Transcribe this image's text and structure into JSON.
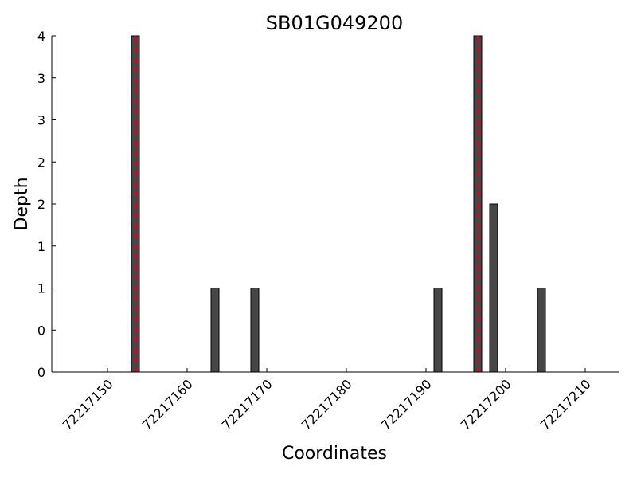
{
  "chart_data": {
    "type": "bar",
    "title": "SB01G049200",
    "x_label": "Coordinates",
    "y_label": "Depth",
    "x": [
      72217153,
      72217163,
      72217168,
      72217191,
      72217196,
      72217198,
      72217204
    ],
    "values": [
      4,
      1,
      1,
      1,
      4,
      2,
      1
    ],
    "bar_width": 1,
    "color": "#474747",
    "highlights": [
      72217153.5,
      72217196.5
    ],
    "highlight_color": "#e3001b",
    "xlim": [
      72217143,
      72217214
    ],
    "xticks": [
      72217150,
      72217160,
      72217170,
      72217180,
      72217190,
      72217200,
      72217210
    ],
    "ylim": [
      0,
      4
    ],
    "yticks": [
      0,
      {
        "value": 0.5,
        "label": "0"
      },
      1,
      {
        "value": 1.5,
        "label": "1"
      },
      2,
      {
        "value": 2.5,
        "label": "2"
      },
      3,
      {
        "value": 3.5,
        "label": "3"
      },
      4
    ],
    "grid": false
  }
}
